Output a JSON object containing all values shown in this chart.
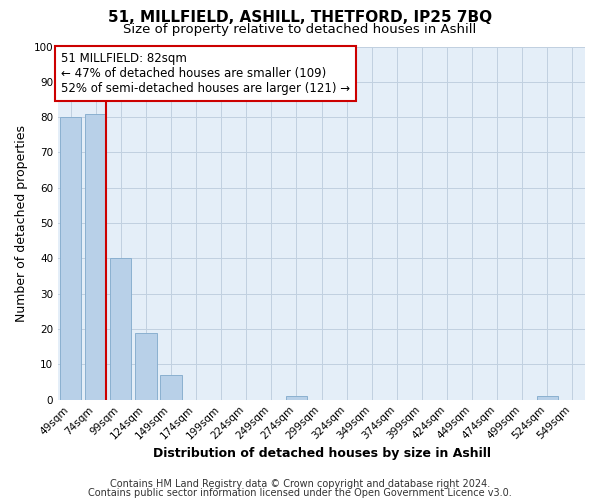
{
  "title": "51, MILLFIELD, ASHILL, THETFORD, IP25 7BQ",
  "subtitle": "Size of property relative to detached houses in Ashill",
  "xlabel": "Distribution of detached houses by size in Ashill",
  "ylabel": "Number of detached properties",
  "bar_labels": [
    "49sqm",
    "74sqm",
    "99sqm",
    "124sqm",
    "149sqm",
    "174sqm",
    "199sqm",
    "224sqm",
    "249sqm",
    "274sqm",
    "299sqm",
    "324sqm",
    "349sqm",
    "374sqm",
    "399sqm",
    "424sqm",
    "449sqm",
    "474sqm",
    "499sqm",
    "524sqm",
    "549sqm"
  ],
  "bar_values": [
    80,
    81,
    40,
    19,
    7,
    0,
    0,
    0,
    0,
    1,
    0,
    0,
    0,
    0,
    0,
    0,
    0,
    0,
    0,
    1,
    0
  ],
  "bar_color": "#b8d0e8",
  "bar_edge_color": "#8ab0d0",
  "vline_color": "#cc0000",
  "vline_x_index": 1,
  "ylim": [
    0,
    100
  ],
  "yticks": [
    0,
    10,
    20,
    30,
    40,
    50,
    60,
    70,
    80,
    90,
    100
  ],
  "annotation_title": "51 MILLFIELD: 82sqm",
  "annotation_line1": "← 47% of detached houses are smaller (109)",
  "annotation_line2": "52% of semi-detached houses are larger (121) →",
  "annotation_box_color": "#ffffff",
  "annotation_box_edge_color": "#cc0000",
  "footer_line1": "Contains HM Land Registry data © Crown copyright and database right 2024.",
  "footer_line2": "Contains public sector information licensed under the Open Government Licence v3.0.",
  "background_color": "#ffffff",
  "plot_bg_color": "#e4eef8",
  "grid_color": "#c0d0e0",
  "title_fontsize": 11,
  "subtitle_fontsize": 9.5,
  "axis_label_fontsize": 9,
  "tick_fontsize": 7.5,
  "annotation_fontsize": 8.5,
  "footer_fontsize": 7
}
